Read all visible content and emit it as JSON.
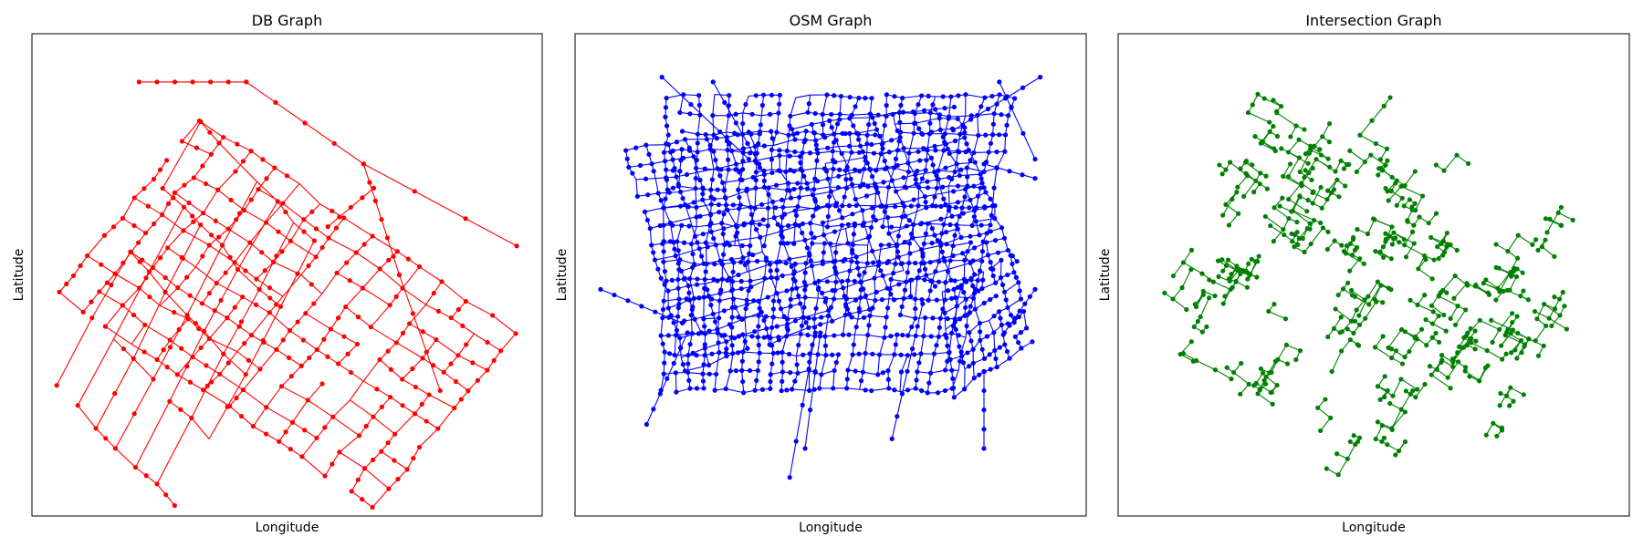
{
  "chart_data": [
    {
      "type": "network",
      "title": "DB Graph",
      "xlabel": "Longitude",
      "ylabel": "Latitude",
      "grid": false,
      "ticks_shown": false,
      "legend": "none",
      "color": "#ff0000",
      "grid_blocks": [
        {
          "name": "upper-rotated-block",
          "corners": [
            [
              0.33,
              0.18
            ],
            [
              0.95,
              0.62
            ],
            [
              0.67,
              0.98
            ],
            [
              0.05,
              0.54
            ]
          ],
          "u": 13,
          "v": 9
        },
        {
          "name": "lower-left-block",
          "corners": [
            [
              0.33,
              0.18
            ],
            [
              0.55,
              0.43
            ],
            [
              0.28,
              0.98
            ],
            [
              0.05,
              0.73
            ]
          ],
          "u": 6,
          "v": 4
        }
      ],
      "extra_edges": [
        [
          [
            0.21,
            0.1
          ],
          [
            0.42,
            0.1
          ]
        ],
        [
          [
            0.42,
            0.1
          ],
          [
            0.65,
            0.27
          ]
        ],
        [
          [
            0.65,
            0.27
          ],
          [
            0.95,
            0.44
          ]
        ],
        [
          [
            0.65,
            0.27
          ],
          [
            0.72,
            0.5
          ]
        ],
        [
          [
            0.72,
            0.5
          ],
          [
            0.8,
            0.74
          ]
        ],
        [
          [
            0.58,
            0.4
          ],
          [
            0.67,
            0.32
          ]
        ]
      ],
      "visible_nodes": 520
    },
    {
      "type": "network",
      "title": "OSM Graph",
      "xlabel": "Longitude",
      "ylabel": "Latitude",
      "grid": false,
      "ticks_shown": false,
      "legend": "none",
      "color": "#0000ff",
      "grid_blocks": [
        {
          "name": "main-block",
          "corners": [
            [
              0.18,
              0.13
            ],
            [
              0.86,
              0.13
            ],
            [
              0.74,
              0.74
            ],
            [
              0.17,
              0.74
            ]
          ],
          "u": 22,
          "v": 16
        },
        {
          "name": "diagonal-block",
          "corners": [
            [
              0.1,
              0.24
            ],
            [
              0.74,
              0.15
            ],
            [
              0.86,
              0.47
            ],
            [
              0.22,
              0.7
            ]
          ],
          "u": 16,
          "v": 14
        },
        {
          "name": "lower-right-block",
          "corners": [
            [
              0.72,
              0.54
            ],
            [
              0.85,
              0.46
            ],
            [
              0.89,
              0.64
            ],
            [
              0.74,
              0.75
            ]
          ],
          "u": 7,
          "v": 6
        }
      ],
      "extra_edges": [
        [
          [
            0.17,
            0.09
          ],
          [
            0.34,
            0.26
          ]
        ],
        [
          [
            0.27,
            0.1
          ],
          [
            0.36,
            0.27
          ]
        ],
        [
          [
            0.91,
            0.09
          ],
          [
            0.74,
            0.2
          ]
        ],
        [
          [
            0.83,
            0.1
          ],
          [
            0.9,
            0.26
          ]
        ],
        [
          [
            0.05,
            0.53
          ],
          [
            0.21,
            0.6
          ]
        ],
        [
          [
            0.42,
            0.92
          ],
          [
            0.47,
            0.62
          ]
        ],
        [
          [
            0.45,
            0.86
          ],
          [
            0.48,
            0.62
          ]
        ],
        [
          [
            0.62,
            0.84
          ],
          [
            0.68,
            0.56
          ]
        ],
        [
          [
            0.8,
            0.86
          ],
          [
            0.8,
            0.7
          ]
        ],
        [
          [
            0.9,
            0.53
          ],
          [
            0.84,
            0.62
          ]
        ],
        [
          [
            0.14,
            0.81
          ],
          [
            0.22,
            0.62
          ]
        ],
        [
          [
            0.9,
            0.3
          ],
          [
            0.8,
            0.27
          ]
        ]
      ],
      "visible_nodes": 1480
    },
    {
      "type": "network",
      "title": "Intersection Graph",
      "xlabel": "Longitude",
      "ylabel": "Latitude",
      "grid": false,
      "ticks_shown": false,
      "legend": "none",
      "color": "#008000",
      "clusters": 90,
      "visible_nodes": 520
    }
  ]
}
